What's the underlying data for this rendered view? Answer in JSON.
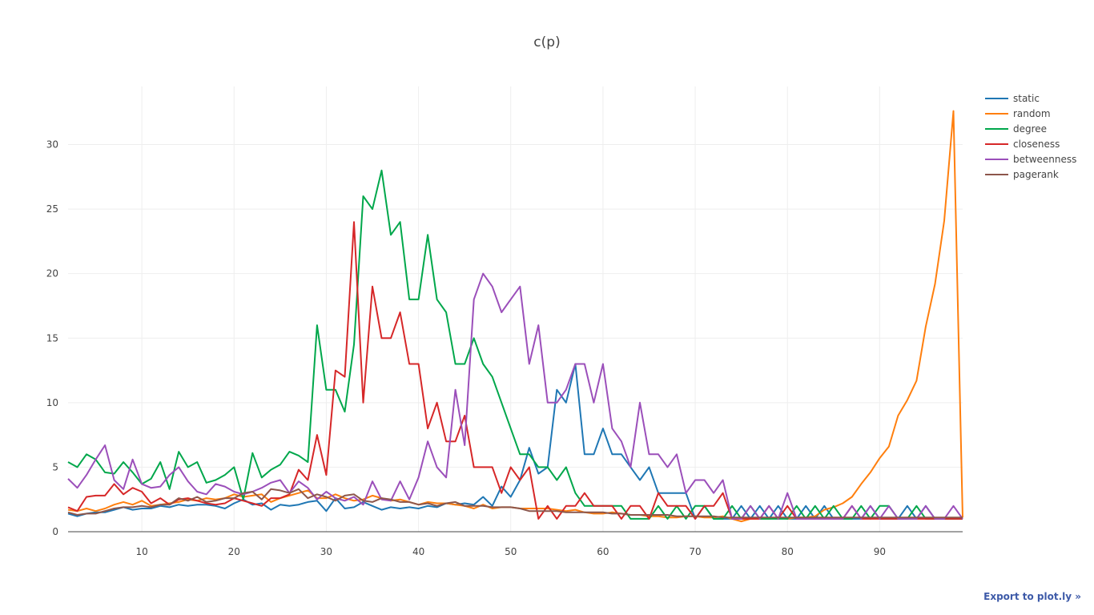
{
  "chart_data": {
    "type": "line",
    "title": "c(p)",
    "xlabel": "",
    "ylabel": "",
    "xlim": [
      2,
      99
    ],
    "ylim": [
      0,
      34.5
    ],
    "x_ticks": [
      10,
      20,
      30,
      40,
      50,
      60,
      70,
      80,
      90
    ],
    "y_ticks": [
      0,
      5,
      10,
      15,
      20,
      25,
      30
    ],
    "grid": true,
    "legend_position": "top-right",
    "x": [
      2,
      3,
      4,
      5,
      6,
      7,
      8,
      9,
      10,
      11,
      12,
      13,
      14,
      15,
      16,
      17,
      18,
      19,
      20,
      21,
      22,
      23,
      24,
      25,
      26,
      27,
      28,
      29,
      30,
      31,
      32,
      33,
      34,
      35,
      36,
      37,
      38,
      39,
      40,
      41,
      42,
      43,
      44,
      45,
      46,
      47,
      48,
      49,
      50,
      51,
      52,
      53,
      54,
      55,
      56,
      57,
      58,
      59,
      60,
      61,
      62,
      63,
      64,
      65,
      66,
      67,
      68,
      69,
      70,
      71,
      72,
      73,
      74,
      75,
      76,
      77,
      78,
      79,
      80,
      81,
      82,
      83,
      84,
      85,
      86,
      87,
      88,
      89,
      90,
      91,
      92,
      93,
      94,
      95,
      96,
      97,
      98,
      99
    ],
    "series": [
      {
        "name": "static",
        "color": "#1f77b4",
        "values": [
          1.4,
          1.2,
          1.4,
          1.5,
          1.5,
          1.7,
          1.9,
          1.7,
          1.8,
          1.8,
          2.0,
          1.9,
          2.1,
          2.0,
          2.1,
          2.1,
          2.0,
          1.8,
          2.2,
          2.5,
          2.1,
          2.2,
          1.7,
          2.1,
          2.0,
          2.1,
          2.3,
          2.4,
          1.6,
          2.6,
          1.8,
          1.9,
          2.3,
          2.0,
          1.7,
          1.9,
          1.8,
          1.9,
          1.8,
          2.0,
          1.9,
          2.2,
          2.1,
          2.2,
          2.1,
          2.7,
          2.0,
          3.5,
          2.7,
          4.0,
          6.5,
          4.5,
          5.0,
          11.0,
          10.0,
          13.0,
          6.0,
          6.0,
          8.0,
          6.0,
          6.0,
          5.0,
          4.0,
          5.0,
          3.0,
          3.0,
          3.0,
          3.0,
          1.0,
          2.0,
          1.0,
          1.0,
          1.0,
          2.0,
          1.0,
          2.0,
          1.0,
          2.0,
          1.0,
          1.0,
          2.0,
          1.0,
          2.0,
          1.0,
          1.0,
          1.0,
          1.0,
          2.0,
          1.0,
          1.0,
          1.0,
          2.0,
          1.0,
          2.0,
          1.0,
          1.0,
          1.0,
          1.0
        ]
      },
      {
        "name": "random",
        "color": "#ff7f0e",
        "values": [
          1.7,
          1.6,
          1.8,
          1.6,
          1.8,
          2.1,
          2.3,
          2.1,
          2.4,
          2.0,
          2.1,
          2.2,
          2.3,
          2.5,
          2.4,
          2.6,
          2.5,
          2.6,
          2.9,
          2.7,
          2.8,
          2.9,
          2.3,
          2.6,
          2.8,
          3.0,
          3.2,
          2.6,
          2.6,
          2.9,
          2.6,
          2.4,
          2.5,
          2.8,
          2.6,
          2.4,
          2.5,
          2.3,
          2.1,
          2.3,
          2.2,
          2.2,
          2.1,
          2.0,
          1.8,
          2.1,
          1.8,
          1.9,
          1.9,
          1.8,
          1.8,
          1.8,
          1.8,
          1.7,
          1.6,
          1.7,
          1.5,
          1.4,
          1.4,
          1.5,
          1.4,
          1.3,
          1.3,
          1.2,
          1.2,
          1.1,
          1.1,
          1.2,
          1.2,
          1.1,
          1.1,
          1.2,
          1.0,
          0.8,
          1.0,
          1.0,
          1.0,
          1.1,
          1.0,
          1.1,
          1.1,
          1.2,
          1.7,
          1.9,
          2.2,
          2.7,
          3.7,
          4.6,
          5.7,
          6.6,
          9.0,
          10.2,
          11.7,
          15.9,
          19.2,
          24.1,
          32.6,
          1.1
        ]
      },
      {
        "name": "degree",
        "color": "#00a74b",
        "values": [
          5.4,
          5.0,
          6.0,
          5.6,
          4.6,
          4.5,
          5.4,
          4.6,
          3.7,
          4.1,
          5.4,
          3.3,
          6.2,
          5.0,
          5.4,
          3.8,
          4.0,
          4.4,
          5.0,
          2.5,
          6.1,
          4.2,
          4.8,
          5.2,
          6.2,
          5.9,
          5.4,
          16.0,
          11.0,
          11.0,
          9.3,
          14.5,
          26.0,
          25.0,
          28.0,
          23.0,
          24.0,
          18.0,
          18.0,
          23.0,
          18.0,
          17.0,
          13.0,
          13.0,
          15.0,
          13.0,
          12.0,
          10.0,
          8.0,
          6.0,
          6.0,
          5.0,
          5.0,
          4.0,
          5.0,
          3.0,
          2.0,
          2.0,
          2.0,
          2.0,
          2.0,
          1.0,
          1.0,
          1.0,
          2.0,
          1.0,
          2.0,
          1.0,
          2.0,
          2.0,
          1.0,
          1.0,
          2.0,
          1.0,
          2.0,
          1.0,
          1.0,
          1.0,
          1.0,
          2.0,
          1.0,
          2.0,
          1.0,
          2.0,
          1.0,
          1.0,
          2.0,
          1.0,
          2.0,
          2.0,
          1.0,
          1.0,
          2.0,
          1.0,
          1.0,
          1.0,
          1.0,
          1.0
        ]
      },
      {
        "name": "closeness",
        "color": "#d62728",
        "values": [
          1.9,
          1.6,
          2.7,
          2.8,
          2.8,
          3.7,
          2.9,
          3.4,
          3.1,
          2.2,
          2.6,
          2.1,
          2.5,
          2.6,
          2.4,
          2.2,
          2.1,
          2.2,
          2.6,
          2.4,
          2.2,
          2.0,
          2.6,
          2.6,
          2.9,
          4.8,
          4.0,
          7.5,
          4.4,
          12.5,
          12.0,
          24.0,
          10.0,
          19.0,
          15.0,
          15.0,
          17.0,
          13.0,
          13.0,
          8.0,
          10.0,
          7.0,
          7.0,
          9.0,
          5.0,
          5.0,
          5.0,
          3.0,
          5.0,
          4.0,
          5.0,
          1.0,
          2.0,
          1.0,
          2.0,
          2.0,
          3.0,
          2.0,
          2.0,
          2.0,
          1.0,
          2.0,
          2.0,
          1.0,
          3.0,
          2.0,
          2.0,
          2.0,
          1.0,
          2.0,
          2.0,
          3.0,
          1.0,
          1.0,
          1.0,
          1.0,
          2.0,
          1.0,
          2.0,
          1.0,
          1.0,
          1.0,
          1.0,
          1.0,
          1.0,
          2.0,
          1.0,
          1.0,
          1.0,
          1.0,
          1.0,
          1.0,
          1.0,
          1.0,
          1.0,
          1.0,
          1.0,
          1.0
        ]
      },
      {
        "name": "betweenness",
        "color": "#9b4fba",
        "values": [
          4.1,
          3.4,
          4.4,
          5.6,
          6.7,
          4.0,
          3.3,
          5.6,
          3.7,
          3.4,
          3.5,
          4.4,
          5.0,
          3.9,
          3.1,
          2.9,
          3.7,
          3.5,
          3.1,
          2.9,
          3.1,
          3.4,
          3.8,
          4.0,
          3.0,
          3.9,
          3.4,
          2.5,
          3.1,
          2.6,
          2.4,
          2.7,
          2.1,
          3.9,
          2.5,
          2.4,
          3.9,
          2.5,
          4.2,
          7.0,
          5.0,
          4.2,
          11.0,
          6.7,
          18.0,
          20.0,
          19.0,
          17.0,
          18.0,
          19.0,
          13.0,
          16.0,
          10.0,
          10.0,
          11.0,
          13.0,
          13.0,
          10.0,
          13.0,
          8.0,
          7.0,
          5.0,
          10.0,
          6.0,
          6.0,
          5.0,
          6.0,
          3.0,
          4.0,
          4.0,
          3.0,
          4.0,
          1.0,
          1.0,
          2.0,
          1.0,
          2.0,
          1.0,
          3.0,
          1.0,
          1.0,
          1.0,
          1.0,
          1.0,
          1.0,
          2.0,
          1.0,
          2.0,
          1.0,
          2.0,
          1.0,
          1.0,
          1.0,
          2.0,
          1.0,
          1.0,
          2.0,
          1.0
        ]
      },
      {
        "name": "pagerank",
        "color": "#8c564b",
        "values": [
          1.5,
          1.3,
          1.4,
          1.4,
          1.6,
          1.8,
          1.9,
          1.9,
          2.0,
          1.9,
          2.1,
          2.1,
          2.6,
          2.4,
          2.7,
          2.3,
          2.4,
          2.6,
          2.6,
          3.0,
          3.1,
          2.5,
          3.3,
          3.2,
          3.0,
          3.3,
          2.6,
          2.9,
          2.7,
          2.4,
          2.8,
          2.9,
          2.4,
          2.3,
          2.6,
          2.5,
          2.3,
          2.3,
          2.1,
          2.2,
          2.0,
          2.2,
          2.3,
          2.0,
          2.0,
          2.0,
          1.9,
          1.9,
          1.9,
          1.8,
          1.6,
          1.6,
          1.6,
          1.6,
          1.5,
          1.5,
          1.5,
          1.5,
          1.5,
          1.4,
          1.4,
          1.3,
          1.3,
          1.3,
          1.3,
          1.3,
          1.2,
          1.2,
          1.2,
          1.2,
          1.2,
          1.1,
          1.1,
          1.1,
          1.1,
          1.1,
          1.1,
          1.1,
          1.1,
          1.1,
          1.1,
          1.1,
          1.1,
          1.1,
          1.1,
          1.1,
          1.1,
          1.1,
          1.1,
          1.1,
          1.1,
          1.1,
          1.1,
          1.1,
          1.1,
          1.1,
          1.1,
          1.1
        ]
      }
    ]
  },
  "export_link": "Export to plot.ly »"
}
